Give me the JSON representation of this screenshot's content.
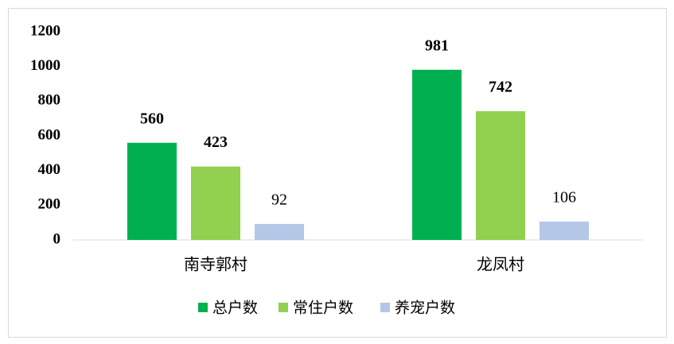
{
  "chart_data": {
    "type": "bar",
    "categories": [
      "南寺郭村",
      "龙凤村"
    ],
    "series": [
      {
        "name": "总户数",
        "color": "#00b050",
        "values": [
          560,
          981
        ]
      },
      {
        "name": "常住户数",
        "color": "#92d050",
        "values": [
          423,
          742
        ]
      },
      {
        "name": "养宠户数",
        "color": "#b4c7e7",
        "values": [
          92,
          106
        ]
      }
    ],
    "ylim": [
      0,
      1200
    ],
    "yticks": [
      0,
      200,
      400,
      600,
      800,
      1000,
      1200
    ],
    "grid": false,
    "legend": "bottom"
  }
}
